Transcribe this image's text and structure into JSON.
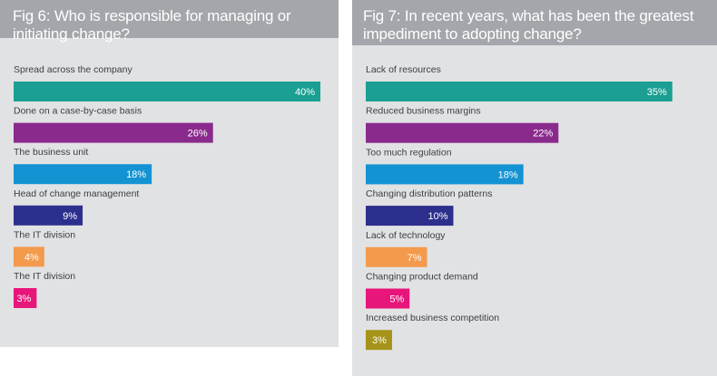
{
  "chart_data": [
    {
      "type": "bar",
      "orientation": "horizontal",
      "title": "Fig 6: Who is responsible for managing or initiating change?",
      "categories": [
        "Spread across the company",
        "Done on a case-by-case basis",
        "The business unit",
        "Head of change management",
        "The IT division",
        "The IT division"
      ],
      "values": [
        40,
        26,
        18,
        9,
        4,
        3
      ],
      "value_labels": [
        "40%",
        "26%",
        "18%",
        "9%",
        "4%",
        "3%"
      ],
      "colors": [
        "#1a9f92",
        "#8b2a8d",
        "#1493d3",
        "#2c2f8d",
        "#f39a4c",
        "#e8157a"
      ],
      "value_unit": "%",
      "grid": false,
      "legend": "none"
    },
    {
      "type": "bar",
      "orientation": "horizontal",
      "title": "Fig 7: In recent years, what has been the greatest impediment to adopting change?",
      "categories": [
        "Lack of resources",
        "Reduced business margins",
        "Too much regulation",
        "Changing distribution patterns",
        "Lack of technology",
        "Changing product demand",
        "Increased business competition"
      ],
      "values": [
        35,
        22,
        18,
        10,
        7,
        5,
        3
      ],
      "value_labels": [
        "35%",
        "22%",
        "18%",
        "10%",
        "7%",
        "5%",
        "3%"
      ],
      "colors": [
        "#1a9f92",
        "#8b2a8d",
        "#1493d3",
        "#2c2f8d",
        "#f39a4c",
        "#e8157a",
        "#a59419"
      ],
      "value_unit": "%",
      "grid": false,
      "legend": "none"
    }
  ]
}
